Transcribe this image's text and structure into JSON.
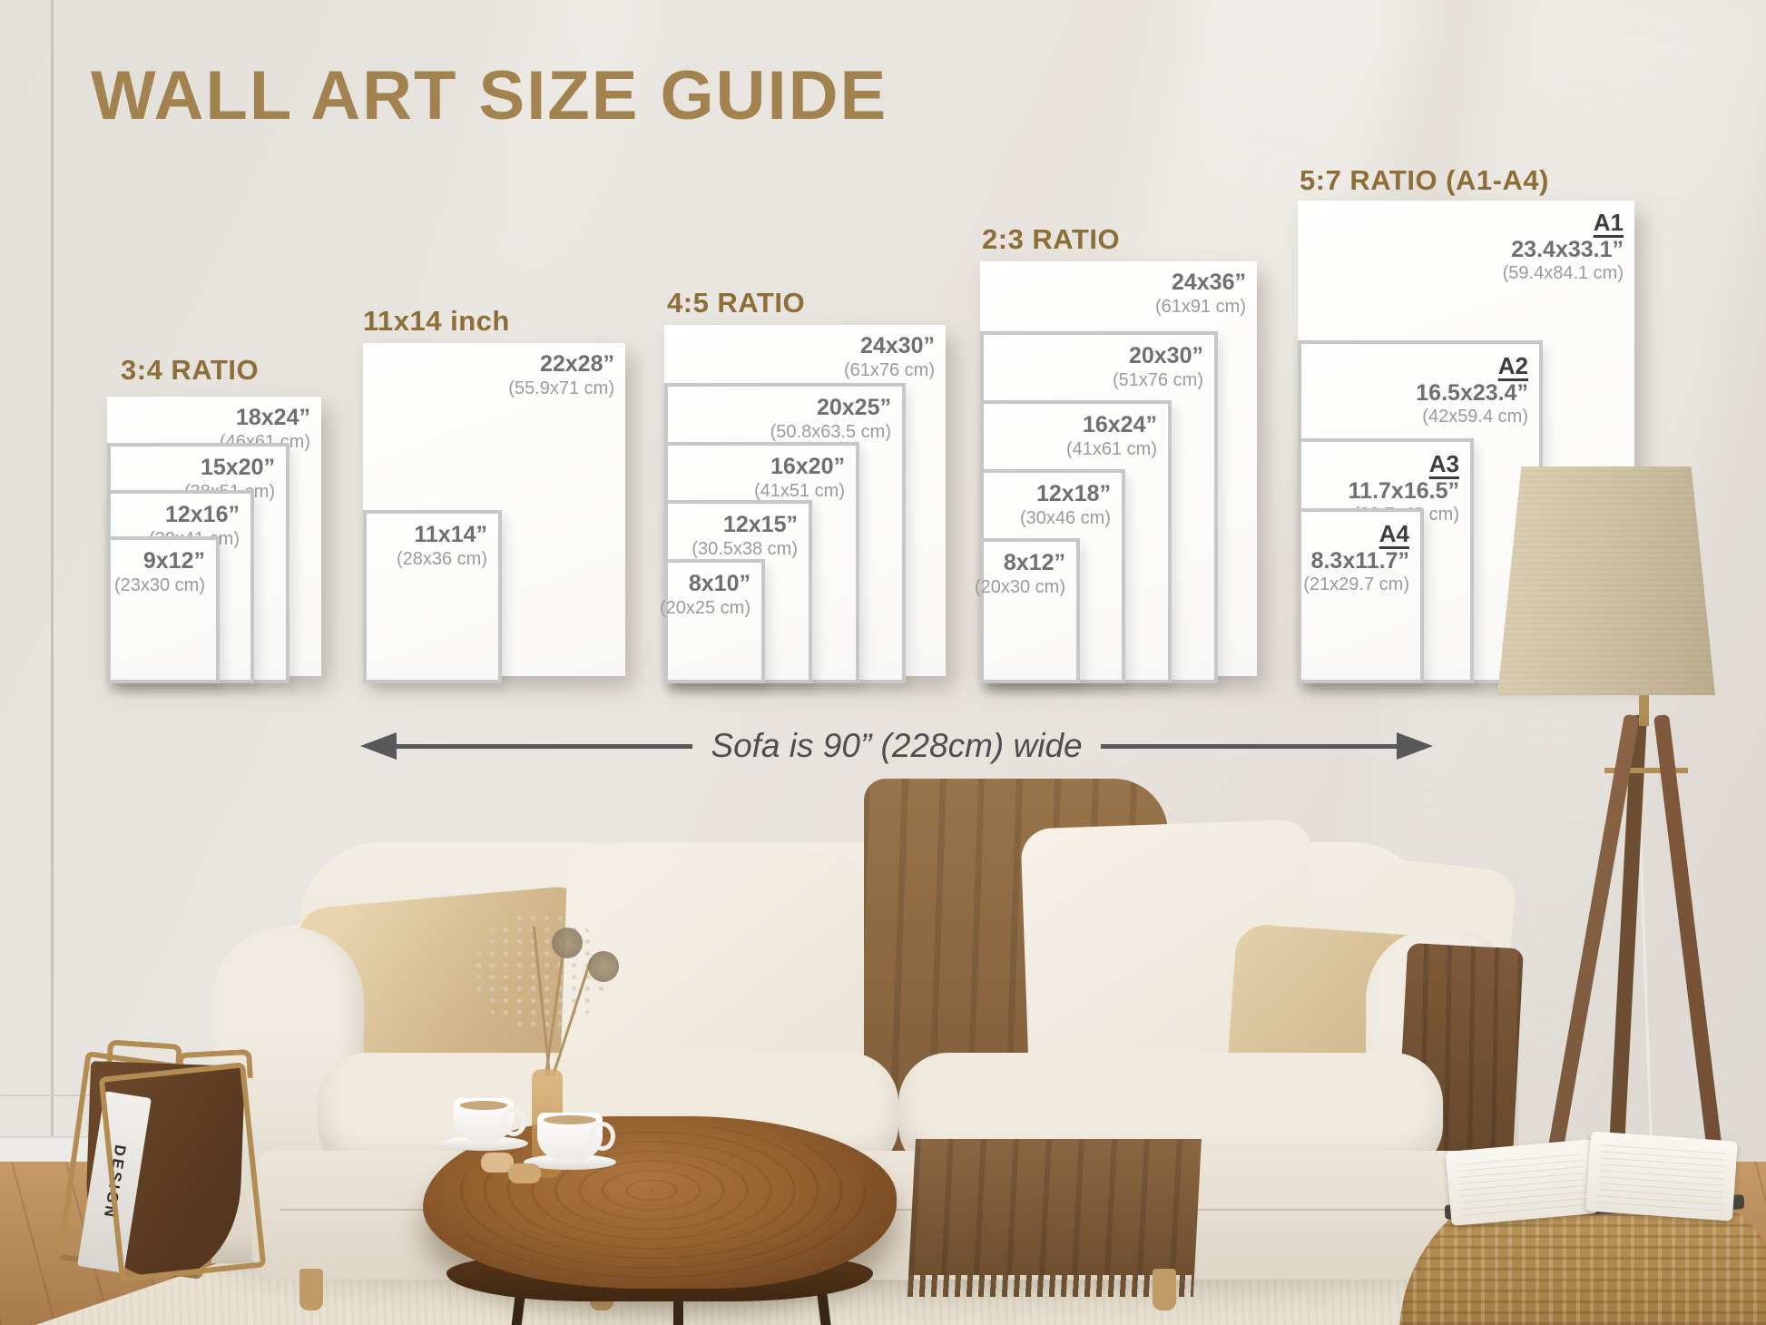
{
  "title": "WALL ART SIZE GUIDE",
  "sofa_note": "Sofa is 90” (228cm) wide",
  "magazine_spine": "DESIGN",
  "colors": {
    "title_gold": "#a2824f",
    "header_gold": "#8d6e37",
    "size_label_gray": "#6f6f6f",
    "cm_label_gray": "#9b9b9b",
    "a_series_dark": "#3d3d3d",
    "arrow_gray": "#57585a",
    "wall": "#e6e2dc",
    "poster_white": "#fcfbfa"
  },
  "groups": [
    {
      "label": "3:4 RATIO",
      "frames": [
        {
          "size": "18x24”",
          "cm": "(46x61 cm)"
        },
        {
          "size": "15x20”",
          "cm": "(38x51 cm)"
        },
        {
          "size": "12x16”",
          "cm": "(30x41 cm)"
        },
        {
          "size": "9x12”",
          "cm": "(23x30 cm)"
        }
      ]
    },
    {
      "label": "11x14 inch",
      "frames": [
        {
          "size": "22x28”",
          "cm": "(55.9x71 cm)"
        },
        {
          "size": "11x14”",
          "cm": "(28x36 cm)"
        }
      ]
    },
    {
      "label": "4:5 RATIO",
      "frames": [
        {
          "size": "24x30”",
          "cm": "(61x76 cm)"
        },
        {
          "size": "20x25”",
          "cm": "(50.8x63.5 cm)"
        },
        {
          "size": "16x20”",
          "cm": "(41x51 cm)"
        },
        {
          "size": "12x15”",
          "cm": "(30.5x38 cm)"
        },
        {
          "size": "8x10”",
          "cm": "(20x25 cm)"
        }
      ]
    },
    {
      "label": "2:3 RATIO",
      "frames": [
        {
          "size": "24x36”",
          "cm": "(61x91 cm)"
        },
        {
          "size": "20x30”",
          "cm": "(51x76 cm)"
        },
        {
          "size": "16x24”",
          "cm": "(41x61 cm)"
        },
        {
          "size": "12x18”",
          "cm": "(30x46 cm)"
        },
        {
          "size": "8x12”",
          "cm": "(20x30 cm)"
        }
      ]
    },
    {
      "label": "5:7 RATIO (A1-A4)",
      "frames": [
        {
          "name": "A1",
          "size": "23.4x33.1”",
          "cm": "(59.4x84.1 cm)"
        },
        {
          "name": "A2",
          "size": "16.5x23.4”",
          "cm": "(42x59.4 cm)"
        },
        {
          "name": "A3",
          "size": "11.7x16.5”",
          "cm": "(29.7x42 cm)"
        },
        {
          "name": "A4",
          "size": "8.3x11.7”",
          "cm": "(21x29.7 cm)"
        }
      ]
    }
  ]
}
